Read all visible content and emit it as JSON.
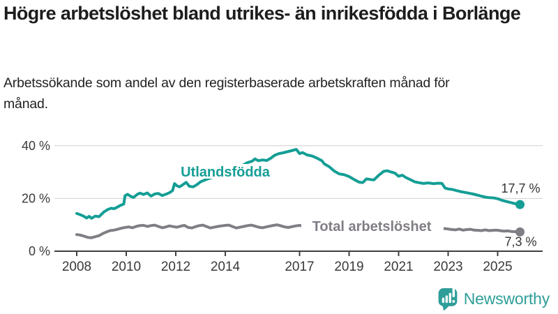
{
  "header": {
    "title": "Högre arbetslöshet bland utrikes- än inrikesfödda i Borlänge",
    "subtitle": "Arbetssökande som andel av den registerbaserade arbetskraften månad för månad."
  },
  "chart_data": {
    "type": "line",
    "title": "Högre arbetslöshet bland utrikes- än inrikesfödda i Borlänge",
    "subtitle": "Arbetssökande som andel av den registerbaserade arbetskraften månad för månad.",
    "unit": "%",
    "ylim": [
      0,
      42
    ],
    "xlim": [
      2008,
      2025.9
    ],
    "grid": "horizontal",
    "legend_position": "inline-labels",
    "y_ticks": [
      0,
      20,
      40
    ],
    "y_tick_labels": [
      "0 %",
      "20 %",
      "40 %"
    ],
    "x_ticks": [
      2008,
      2010,
      2012,
      2014,
      2017,
      2019,
      2021,
      2023,
      2025
    ],
    "x_tick_labels": [
      "2008",
      "2010",
      "2012",
      "2014",
      "2017",
      "2019",
      "2021",
      "2023",
      "2025"
    ],
    "series": [
      {
        "name": "Utlandsfödda",
        "color": "#149e95",
        "end_label": "17,7 %",
        "end_value": 17.7,
        "points": [
          [
            2008.0,
            14.3
          ],
          [
            2008.1,
            14.0
          ],
          [
            2008.25,
            13.4
          ],
          [
            2008.4,
            12.6
          ],
          [
            2008.5,
            13.2
          ],
          [
            2008.6,
            12.5
          ],
          [
            2008.75,
            13.3
          ],
          [
            2008.9,
            13.1
          ],
          [
            2009.0,
            14.0
          ],
          [
            2009.1,
            14.9
          ],
          [
            2009.25,
            15.8
          ],
          [
            2009.4,
            16.3
          ],
          [
            2009.5,
            16.1
          ],
          [
            2009.6,
            16.5
          ],
          [
            2009.75,
            17.3
          ],
          [
            2009.9,
            17.9
          ],
          [
            2009.95,
            21.0
          ],
          [
            2010.05,
            21.6
          ],
          [
            2010.2,
            20.7
          ],
          [
            2010.3,
            20.4
          ],
          [
            2010.45,
            21.6
          ],
          [
            2010.55,
            22.0
          ],
          [
            2010.7,
            21.5
          ],
          [
            2010.85,
            22.1
          ],
          [
            2011.0,
            20.9
          ],
          [
            2011.15,
            21.7
          ],
          [
            2011.3,
            21.9
          ],
          [
            2011.45,
            21.1
          ],
          [
            2011.6,
            21.6
          ],
          [
            2011.75,
            22.2
          ],
          [
            2011.87,
            23.0
          ],
          [
            2011.95,
            25.6
          ],
          [
            2012.05,
            24.8
          ],
          [
            2012.15,
            24.4
          ],
          [
            2012.3,
            25.3
          ],
          [
            2012.42,
            26.1
          ],
          [
            2012.55,
            24.6
          ],
          [
            2012.7,
            24.4
          ],
          [
            2012.85,
            25.2
          ],
          [
            2013.0,
            26.3
          ],
          [
            2013.15,
            26.9
          ],
          [
            2013.3,
            27.4
          ],
          [
            2013.5,
            28.1
          ],
          [
            2013.7,
            28.7
          ],
          [
            2013.9,
            29.4
          ],
          [
            2014.1,
            30.1
          ],
          [
            2014.3,
            30.9
          ],
          [
            2014.5,
            31.7
          ],
          [
            2014.7,
            32.6
          ],
          [
            2014.9,
            33.6
          ],
          [
            2015.08,
            34.1
          ],
          [
            2015.2,
            35.0
          ],
          [
            2015.33,
            34.3
          ],
          [
            2015.5,
            34.6
          ],
          [
            2015.67,
            34.4
          ],
          [
            2015.83,
            35.2
          ],
          [
            2016.0,
            36.4
          ],
          [
            2016.17,
            37.0
          ],
          [
            2016.33,
            37.3
          ],
          [
            2016.5,
            37.7
          ],
          [
            2016.67,
            38.1
          ],
          [
            2016.87,
            38.6
          ],
          [
            2017.0,
            37.0
          ],
          [
            2017.12,
            37.4
          ],
          [
            2017.3,
            36.5
          ],
          [
            2017.5,
            36.1
          ],
          [
            2017.7,
            35.3
          ],
          [
            2017.9,
            34.3
          ],
          [
            2018.0,
            33.1
          ],
          [
            2018.2,
            32.0
          ],
          [
            2018.4,
            30.4
          ],
          [
            2018.6,
            29.3
          ],
          [
            2018.8,
            29.0
          ],
          [
            2019.0,
            28.3
          ],
          [
            2019.2,
            27.2
          ],
          [
            2019.4,
            26.2
          ],
          [
            2019.55,
            26.0
          ],
          [
            2019.7,
            27.4
          ],
          [
            2019.85,
            27.2
          ],
          [
            2020.0,
            27.0
          ],
          [
            2020.2,
            28.8
          ],
          [
            2020.4,
            30.3
          ],
          [
            2020.55,
            30.5
          ],
          [
            2020.7,
            30.0
          ],
          [
            2020.85,
            29.6
          ],
          [
            2021.0,
            28.4
          ],
          [
            2021.15,
            28.8
          ],
          [
            2021.3,
            27.9
          ],
          [
            2021.5,
            27.0
          ],
          [
            2021.65,
            26.3
          ],
          [
            2021.8,
            26.0
          ],
          [
            2022.0,
            25.7
          ],
          [
            2022.2,
            25.9
          ],
          [
            2022.4,
            25.6
          ],
          [
            2022.6,
            25.8
          ],
          [
            2022.75,
            25.7
          ],
          [
            2022.87,
            24.0
          ],
          [
            2023.0,
            23.6
          ],
          [
            2023.17,
            23.4
          ],
          [
            2023.33,
            23.0
          ],
          [
            2023.5,
            22.6
          ],
          [
            2023.67,
            22.3
          ],
          [
            2023.83,
            22.0
          ],
          [
            2024.0,
            21.7
          ],
          [
            2024.17,
            21.3
          ],
          [
            2024.33,
            20.9
          ],
          [
            2024.5,
            20.5
          ],
          [
            2024.67,
            20.3
          ],
          [
            2024.83,
            20.2
          ],
          [
            2025.0,
            19.9
          ],
          [
            2025.17,
            19.3
          ],
          [
            2025.33,
            18.9
          ],
          [
            2025.5,
            18.5
          ],
          [
            2025.67,
            18.1
          ],
          [
            2025.9,
            17.7
          ]
        ]
      },
      {
        "name": "Total arbetslöshet",
        "color": "#817d85",
        "end_label": "7,3 %",
        "end_value": 7.3,
        "points": [
          [
            2008.0,
            6.3
          ],
          [
            2008.15,
            6.1
          ],
          [
            2008.3,
            5.7
          ],
          [
            2008.45,
            5.2
          ],
          [
            2008.6,
            5.1
          ],
          [
            2008.75,
            5.5
          ],
          [
            2008.9,
            5.9
          ],
          [
            2009.05,
            6.7
          ],
          [
            2009.2,
            7.3
          ],
          [
            2009.35,
            7.8
          ],
          [
            2009.5,
            8.0
          ],
          [
            2009.65,
            8.3
          ],
          [
            2009.8,
            8.7
          ],
          [
            2009.95,
            9.0
          ],
          [
            2010.1,
            9.2
          ],
          [
            2010.25,
            8.9
          ],
          [
            2010.4,
            9.4
          ],
          [
            2010.55,
            9.7
          ],
          [
            2010.7,
            9.8
          ],
          [
            2010.85,
            9.4
          ],
          [
            2011.0,
            9.7
          ],
          [
            2011.15,
            9.9
          ],
          [
            2011.3,
            9.4
          ],
          [
            2011.45,
            8.9
          ],
          [
            2011.6,
            9.2
          ],
          [
            2011.75,
            9.6
          ],
          [
            2011.9,
            9.3
          ],
          [
            2012.05,
            9.1
          ],
          [
            2012.2,
            9.5
          ],
          [
            2012.35,
            9.8
          ],
          [
            2012.5,
            9.0
          ],
          [
            2012.65,
            8.8
          ],
          [
            2012.8,
            9.3
          ],
          [
            2012.95,
            9.7
          ],
          [
            2013.1,
            9.9
          ],
          [
            2013.25,
            9.3
          ],
          [
            2013.4,
            8.8
          ],
          [
            2013.55,
            9.1
          ],
          [
            2013.7,
            9.4
          ],
          [
            2013.85,
            9.6
          ],
          [
            2014.0,
            9.8
          ],
          [
            2014.15,
            9.9
          ],
          [
            2014.3,
            9.3
          ],
          [
            2014.45,
            8.8
          ],
          [
            2014.6,
            9.1
          ],
          [
            2014.75,
            9.4
          ],
          [
            2014.9,
            9.7
          ],
          [
            2015.05,
            9.9
          ],
          [
            2015.2,
            9.5
          ],
          [
            2015.35,
            9.1
          ],
          [
            2015.5,
            8.9
          ],
          [
            2015.65,
            9.2
          ],
          [
            2015.8,
            9.5
          ],
          [
            2015.95,
            9.8
          ],
          [
            2016.1,
            10.0
          ],
          [
            2016.25,
            9.6
          ],
          [
            2016.4,
            9.2
          ],
          [
            2016.55,
            9.0
          ],
          [
            2016.7,
            9.3
          ],
          [
            2016.85,
            9.6
          ],
          [
            2017.0,
            9.8
          ],
          [
            2017.15,
            9.5
          ],
          [
            2017.3,
            9.1
          ],
          [
            2017.45,
            8.8
          ],
          [
            2017.6,
            9.0
          ],
          [
            2017.75,
            9.2
          ],
          [
            2017.9,
            9.4
          ],
          [
            2018.05,
            9.1
          ],
          [
            2018.2,
            8.8
          ],
          [
            2018.35,
            8.6
          ],
          [
            2018.5,
            8.5
          ],
          [
            2018.65,
            8.7
          ],
          [
            2018.8,
            8.9
          ],
          [
            2018.95,
            9.1
          ],
          [
            2019.1,
            8.9
          ],
          [
            2019.25,
            8.7
          ],
          [
            2019.4,
            8.5
          ],
          [
            2019.55,
            8.6
          ],
          [
            2019.7,
            8.8
          ],
          [
            2019.85,
            9.0
          ],
          [
            2020.0,
            9.2
          ],
          [
            2020.15,
            9.8
          ],
          [
            2020.3,
            10.3
          ],
          [
            2020.45,
            10.2
          ],
          [
            2020.6,
            9.9
          ],
          [
            2020.75,
            9.7
          ],
          [
            2020.9,
            9.8
          ],
          [
            2021.05,
            9.6
          ],
          [
            2021.2,
            9.2
          ],
          [
            2021.35,
            8.9
          ],
          [
            2021.5,
            8.6
          ],
          [
            2021.65,
            8.4
          ],
          [
            2021.8,
            8.5
          ],
          [
            2021.95,
            8.7
          ],
          [
            2022.1,
            8.5
          ],
          [
            2022.25,
            8.3
          ],
          [
            2022.4,
            8.2
          ],
          [
            2022.55,
            8.4
          ],
          [
            2022.7,
            8.3
          ],
          [
            2022.85,
            8.6
          ],
          [
            2023.0,
            8.4
          ],
          [
            2023.15,
            8.2
          ],
          [
            2023.3,
            8.1
          ],
          [
            2023.45,
            8.4
          ],
          [
            2023.6,
            8.0
          ],
          [
            2023.75,
            8.2
          ],
          [
            2023.9,
            8.3
          ],
          [
            2024.05,
            8.0
          ],
          [
            2024.2,
            7.9
          ],
          [
            2024.35,
            7.8
          ],
          [
            2024.5,
            8.1
          ],
          [
            2024.65,
            7.8
          ],
          [
            2024.8,
            7.9
          ],
          [
            2024.95,
            8.0
          ],
          [
            2025.1,
            7.8
          ],
          [
            2025.25,
            7.6
          ],
          [
            2025.4,
            7.7
          ],
          [
            2025.55,
            7.5
          ],
          [
            2025.7,
            7.4
          ],
          [
            2025.9,
            7.3
          ]
        ]
      }
    ]
  },
  "footer": {
    "brand": "Newsworthy"
  },
  "colors": {
    "accent_teal": "#149e95",
    "line_gray": "#817d85",
    "logo_teal": "#2f9e99",
    "title_text": "#1d1d1d",
    "axis_text": "#3a3a3a",
    "value_text": "#333333",
    "gridline": "#cfcfcf",
    "axis_line": "#404040"
  }
}
